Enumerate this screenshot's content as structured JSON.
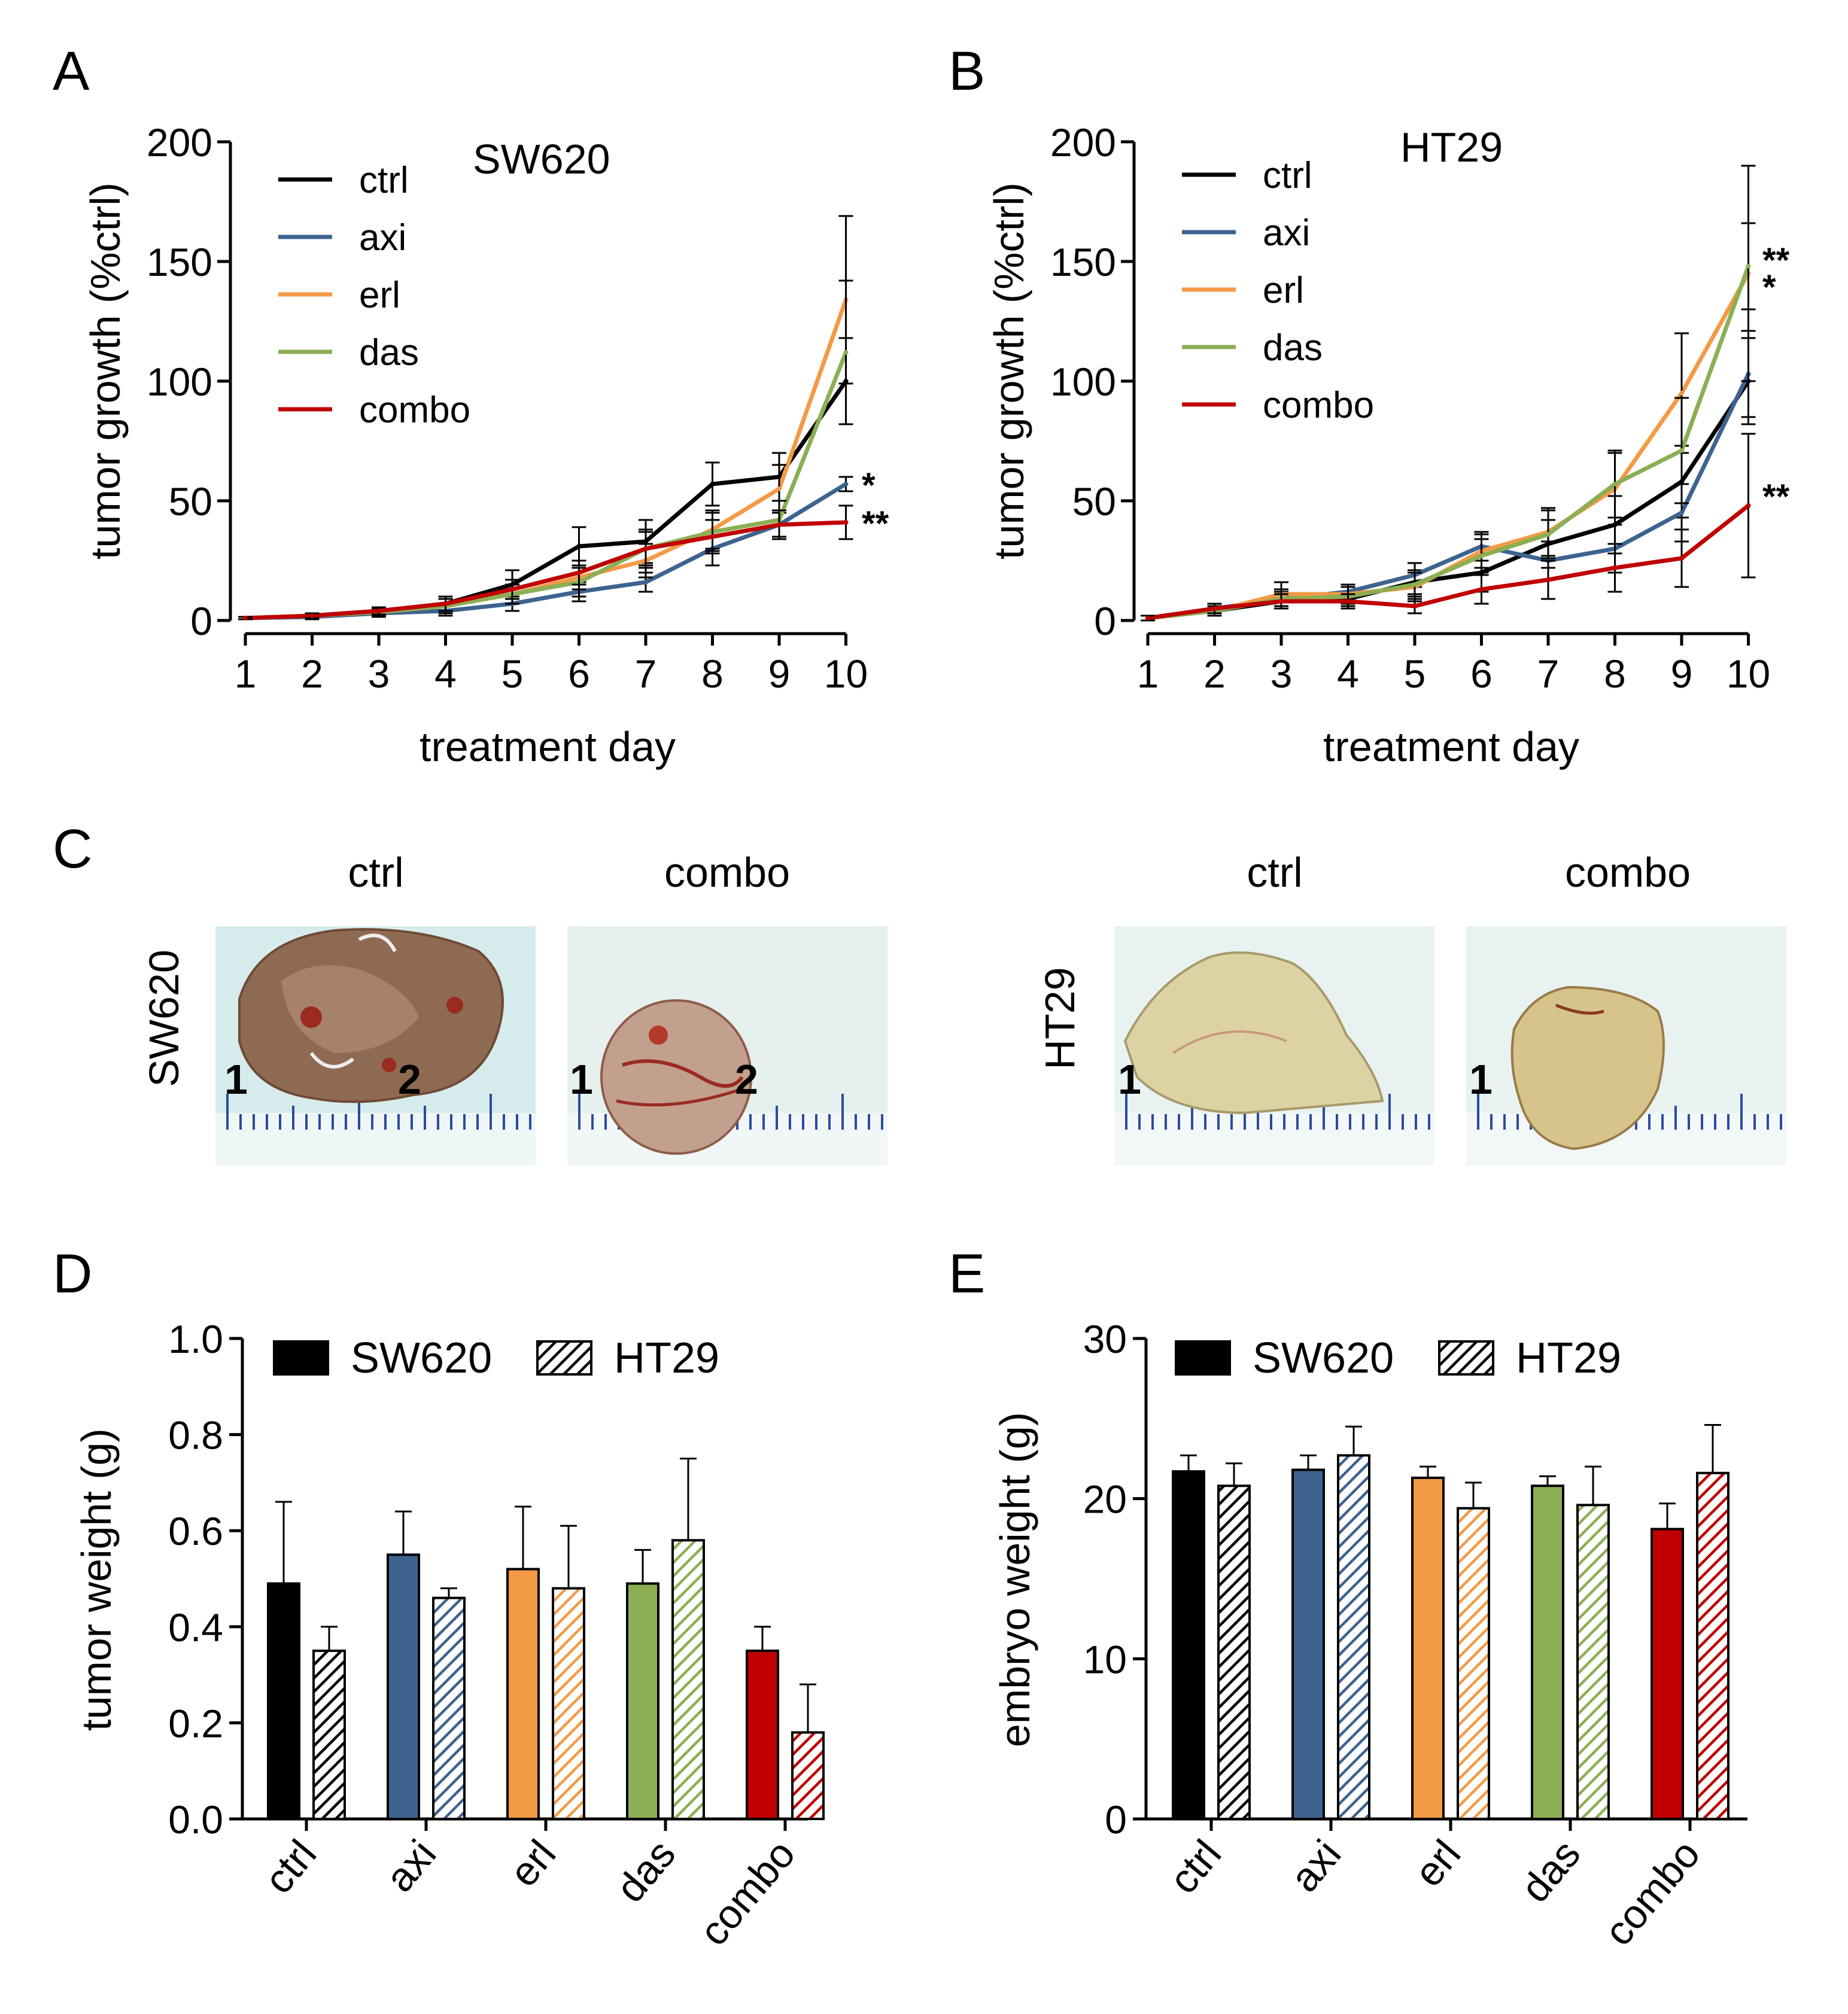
{
  "panels": {
    "A": "A",
    "B": "B",
    "C": "C",
    "D": "D",
    "E": "E"
  },
  "colors": {
    "ctrl": "#000000",
    "axi": "#3d638f",
    "erl": "#f39a46",
    "das": "#8cae54",
    "combo": "#c00000"
  },
  "photos": {
    "col_ctrl": "ctrl",
    "col_combo": "combo",
    "col_ctrl2": "ctrl",
    "col_combo2": "combo",
    "row_sw620": "SW620",
    "row_ht29": "HT29",
    "ruler_marks": [
      "1",
      "2",
      "1",
      "2",
      "1",
      "1"
    ]
  },
  "chart_data": [
    {
      "type": "line",
      "panel": "A",
      "title": "SW620",
      "xlabel": "treatment day",
      "ylabel": "tumor growth (%ctrl)",
      "x": [
        1,
        2,
        3,
        4,
        5,
        6,
        7,
        8,
        9,
        10
      ],
      "xticks": [
        "1",
        "2",
        "3",
        "4",
        "5",
        "6",
        "7",
        "8",
        "9",
        "10"
      ],
      "ylim": [
        0,
        200
      ],
      "yticks": [
        "0",
        "50",
        "100",
        "150",
        "200"
      ],
      "legend_position": "top-left",
      "series": [
        {
          "name": "ctrl",
          "values": [
            1,
            2,
            4,
            7,
            15,
            31,
            33,
            57,
            60,
            100
          ],
          "errors": [
            0.5,
            1,
            1.5,
            3,
            6,
            8,
            9,
            9,
            10,
            18
          ]
        },
        {
          "name": "axi",
          "values": [
            1,
            1.5,
            3,
            4,
            7,
            12,
            16,
            30,
            40,
            57
          ],
          "errors": [
            0.5,
            1,
            1.5,
            2,
            3,
            4,
            4,
            7,
            5,
            3
          ]
        },
        {
          "name": "erl",
          "values": [
            1,
            2,
            3.5,
            6,
            11,
            18,
            25,
            38,
            55,
            134
          ],
          "errors": [
            0.5,
            1,
            1.5,
            3,
            4,
            5,
            7,
            8,
            10,
            35
          ]
        },
        {
          "name": "das",
          "values": [
            1,
            2,
            3.5,
            6,
            11,
            16,
            30,
            37,
            42,
            112
          ],
          "errors": [
            0.5,
            1,
            1.5,
            3,
            4,
            6,
            8,
            8,
            8,
            30
          ]
        },
        {
          "name": "combo",
          "values": [
            1,
            2,
            4,
            7,
            13,
            20,
            30,
            35,
            40,
            41
          ],
          "errors": [
            0.5,
            1,
            1.5,
            3,
            4,
            5,
            7,
            7,
            6,
            7
          ]
        }
      ],
      "annotations": [
        {
          "series": "axi",
          "text": "*"
        },
        {
          "series": "combo",
          "text": "**"
        }
      ]
    },
    {
      "type": "line",
      "panel": "B",
      "title": "HT29",
      "xlabel": "treatment day",
      "ylabel": "tumor growth (%ctrl)",
      "x": [
        1,
        2,
        3,
        4,
        5,
        6,
        7,
        8,
        9,
        10
      ],
      "xticks": [
        "1",
        "2",
        "3",
        "4",
        "5",
        "6",
        "7",
        "8",
        "9",
        "10"
      ],
      "ylim": [
        0,
        200
      ],
      "yticks": [
        "0",
        "50",
        "100",
        "150",
        "200"
      ],
      "legend_position": "top-left",
      "series": [
        {
          "name": "ctrl",
          "values": [
            1,
            4,
            8,
            9,
            16,
            20,
            32,
            40,
            58,
            100
          ],
          "errors": [
            1,
            2,
            3,
            3,
            5,
            8,
            10,
            12,
            15,
            18
          ]
        },
        {
          "name": "axi",
          "values": [
            1,
            5,
            9,
            12,
            19,
            31,
            25,
            30,
            45,
            103
          ],
          "errors": [
            1,
            2,
            3,
            3,
            5,
            6,
            8,
            10,
            12,
            18
          ]
        },
        {
          "name": "erl",
          "values": [
            1,
            4,
            11,
            11,
            14,
            29,
            37,
            55,
            95,
            145
          ],
          "errors": [
            1,
            2,
            5,
            4,
            6,
            7,
            10,
            15,
            25,
            45
          ]
        },
        {
          "name": "das",
          "values": [
            1,
            4,
            9,
            10,
            15,
            27,
            36,
            57,
            71,
            148
          ],
          "errors": [
            1,
            2,
            4,
            4,
            5,
            7,
            10,
            14,
            22,
            18
          ]
        },
        {
          "name": "combo",
          "values": [
            1,
            5,
            8,
            8,
            6,
            13,
            17,
            22,
            26,
            48
          ],
          "errors": [
            1,
            2,
            3,
            3,
            3,
            6,
            8,
            10,
            12,
            30
          ]
        }
      ],
      "annotations": [
        {
          "series": "das",
          "text": "**"
        },
        {
          "series": "erl",
          "text": "*"
        },
        {
          "series": "combo",
          "text": "**"
        }
      ]
    },
    {
      "type": "bar",
      "panel": "D",
      "ylabel": "tumor weight (g)",
      "categories": [
        "ctrl",
        "axi",
        "erl",
        "das",
        "combo"
      ],
      "ylim": [
        0,
        1.0
      ],
      "yticks": [
        "0.0",
        "0.2",
        "0.4",
        "0.6",
        "0.8",
        "1.0"
      ],
      "legend_position": "top",
      "series": [
        {
          "name": "SW620",
          "pattern": "solid",
          "values": [
            0.49,
            0.55,
            0.52,
            0.49,
            0.35
          ],
          "errors": [
            0.17,
            0.09,
            0.13,
            0.07,
            0.05
          ]
        },
        {
          "name": "HT29",
          "pattern": "hatched",
          "values": [
            0.35,
            0.46,
            0.48,
            0.58,
            0.18
          ],
          "errors": [
            0.05,
            0.02,
            0.13,
            0.17,
            0.1
          ]
        }
      ]
    },
    {
      "type": "bar",
      "panel": "E",
      "ylabel": "embryo weight (g)",
      "categories": [
        "ctrl",
        "axi",
        "erl",
        "das",
        "combo"
      ],
      "ylim": [
        0,
        30
      ],
      "yticks": [
        "0",
        "10",
        "20",
        "30"
      ],
      "legend_position": "top",
      "series": [
        {
          "name": "SW620",
          "pattern": "solid",
          "values": [
            21.7,
            21.8,
            21.3,
            20.8,
            18.1
          ],
          "errors": [
            1.0,
            0.9,
            0.7,
            0.6,
            1.6
          ]
        },
        {
          "name": "HT29",
          "pattern": "hatched",
          "values": [
            20.8,
            22.7,
            19.4,
            19.6,
            21.6
          ],
          "errors": [
            1.4,
            1.8,
            1.6,
            2.4,
            3.0
          ]
        }
      ]
    }
  ]
}
